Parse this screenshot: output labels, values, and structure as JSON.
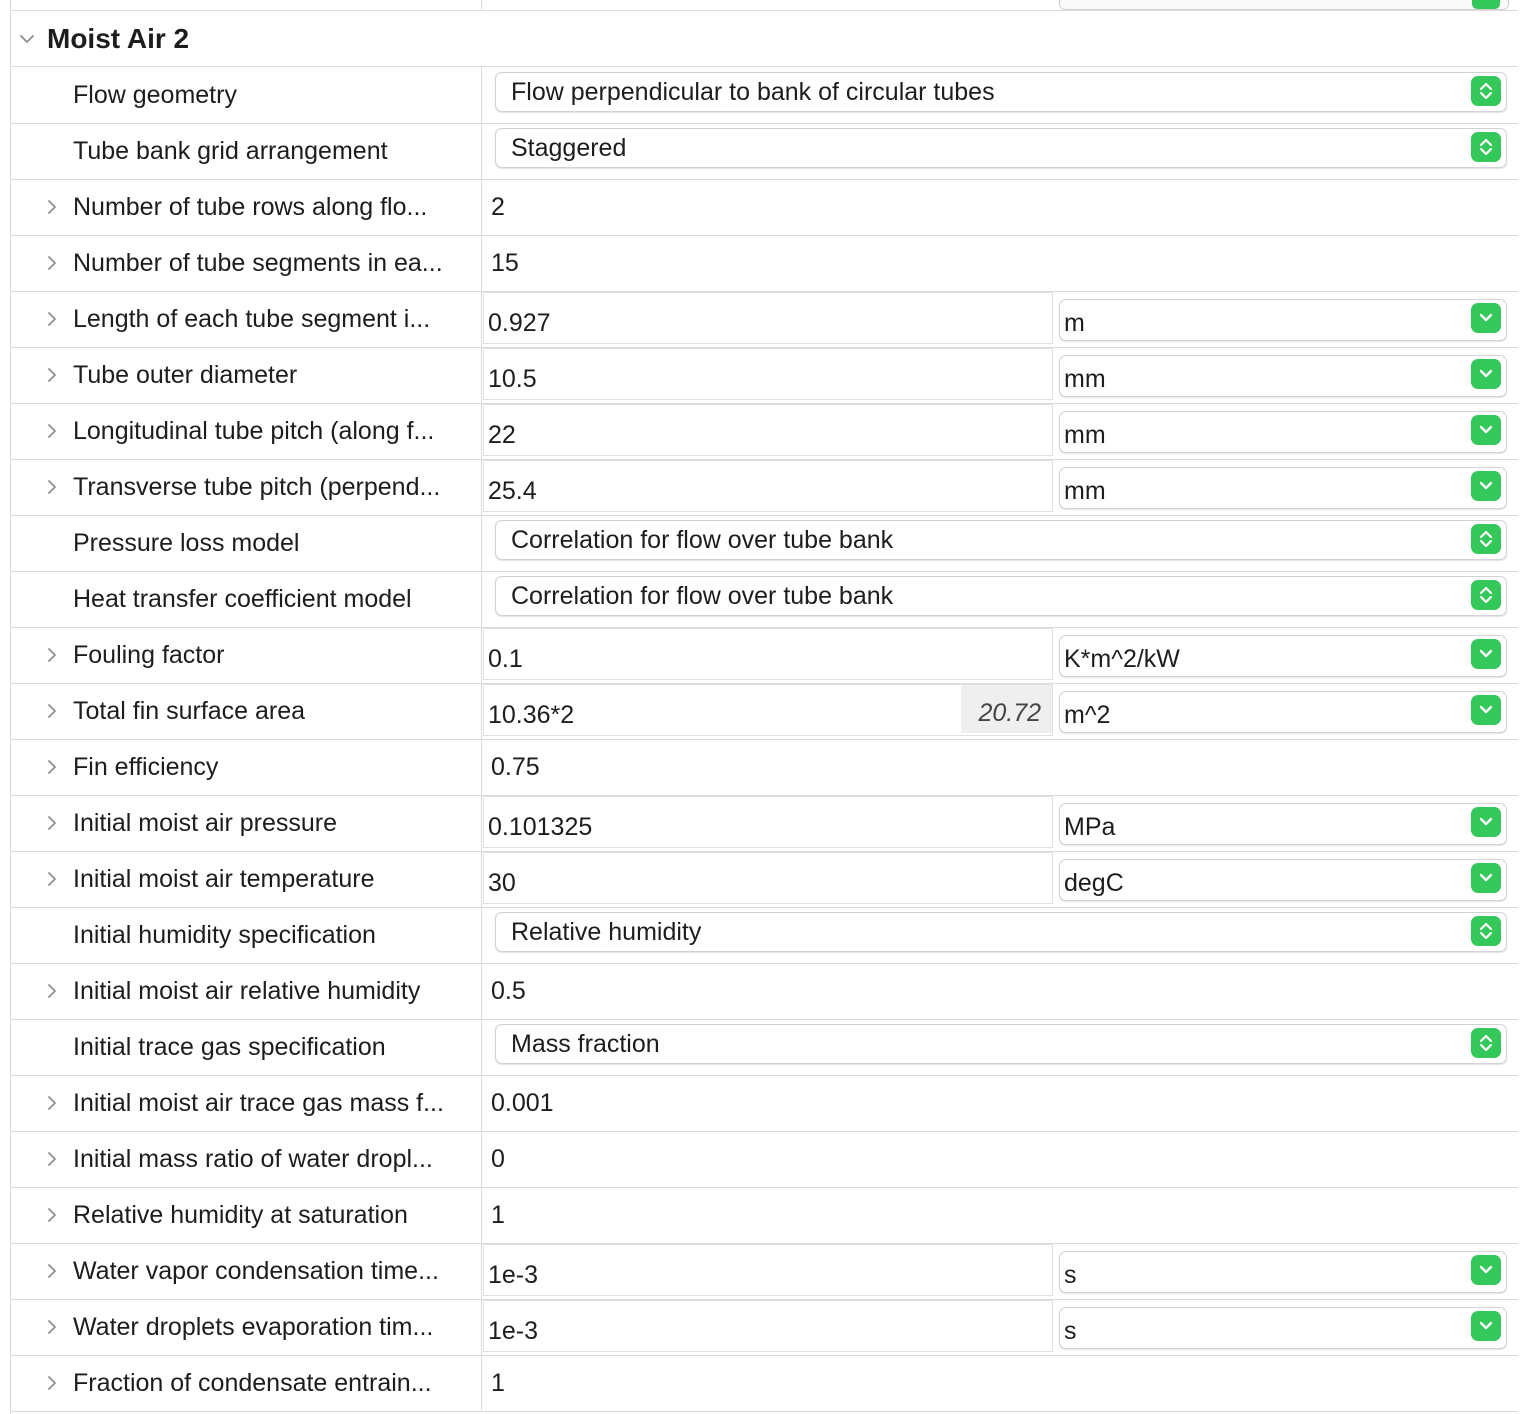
{
  "section": {
    "title": "Moist Air 2"
  },
  "rows": [
    {
      "label": "Flow geometry",
      "kind": "select",
      "value": "Flow perpendicular to bank of circular tubes"
    },
    {
      "label": "Tube bank grid arrangement",
      "kind": "select",
      "value": "Staggered"
    },
    {
      "label": "Number of tube rows along flo...",
      "kind": "plain",
      "expandable": true,
      "value": "2"
    },
    {
      "label": "Number of tube segments in ea...",
      "kind": "plain",
      "expandable": true,
      "value": "15"
    },
    {
      "label": "Length of each tube segment i...",
      "kind": "unit",
      "expandable": true,
      "value": "0.927",
      "unit": "m"
    },
    {
      "label": "Tube outer diameter",
      "kind": "unit",
      "expandable": true,
      "value": "10.5",
      "unit": "mm"
    },
    {
      "label": "Longitudinal tube pitch (along f...",
      "kind": "unit",
      "expandable": true,
      "value": "22",
      "unit": "mm"
    },
    {
      "label": "Transverse tube pitch (perpend...",
      "kind": "unit",
      "expandable": true,
      "value": "25.4",
      "unit": "mm"
    },
    {
      "label": "Pressure loss model",
      "kind": "select",
      "value": "Correlation for flow over tube bank"
    },
    {
      "label": "Heat transfer coefficient model",
      "kind": "select",
      "value": "Correlation for flow over tube bank"
    },
    {
      "label": "Fouling factor",
      "kind": "unit",
      "expandable": true,
      "value": "0.1",
      "unit": "K*m^2/kW"
    },
    {
      "label": "Total fin surface area",
      "kind": "unit",
      "expandable": true,
      "value": "10.36*2",
      "evaluated": "20.72",
      "unit": "m^2"
    },
    {
      "label": "Fin efficiency",
      "kind": "plain",
      "expandable": true,
      "value": "0.75"
    },
    {
      "label": "Initial moist air pressure",
      "kind": "unit",
      "expandable": true,
      "value": "0.101325",
      "unit": "MPa"
    },
    {
      "label": "Initial moist air temperature",
      "kind": "unit",
      "expandable": true,
      "value": "30",
      "unit": "degC"
    },
    {
      "label": "Initial humidity specification",
      "kind": "select",
      "value": "Relative humidity"
    },
    {
      "label": "Initial moist air relative humidity",
      "kind": "plain",
      "expandable": true,
      "value": "0.5"
    },
    {
      "label": "Initial trace gas specification",
      "kind": "select",
      "value": "Mass fraction"
    },
    {
      "label": "Initial moist air trace gas mass f...",
      "kind": "plain",
      "expandable": true,
      "value": "0.001"
    },
    {
      "label": "Initial mass ratio of water dropl...",
      "kind": "plain",
      "expandable": true,
      "value": "0"
    },
    {
      "label": "Relative humidity at saturation",
      "kind": "plain",
      "expandable": true,
      "value": "1"
    },
    {
      "label": "Water vapor condensation time...",
      "kind": "unit",
      "expandable": true,
      "value": "1e-3",
      "unit": "s"
    },
    {
      "label": "Water droplets evaporation tim...",
      "kind": "unit",
      "expandable": true,
      "value": "1e-3",
      "unit": "s"
    },
    {
      "label": "Fraction of condensate entrain...",
      "kind": "plain",
      "expandable": true,
      "value": "1"
    }
  ],
  "colors": {
    "accent": "#34c759",
    "border": "#dcdcdc",
    "evaluated_bg": "#efefef"
  },
  "icons": {
    "expand": "chevron-right-icon",
    "collapse": "chevron-down-icon",
    "select": "up-down-arrows-icon",
    "unit": "chevron-down-icon"
  }
}
